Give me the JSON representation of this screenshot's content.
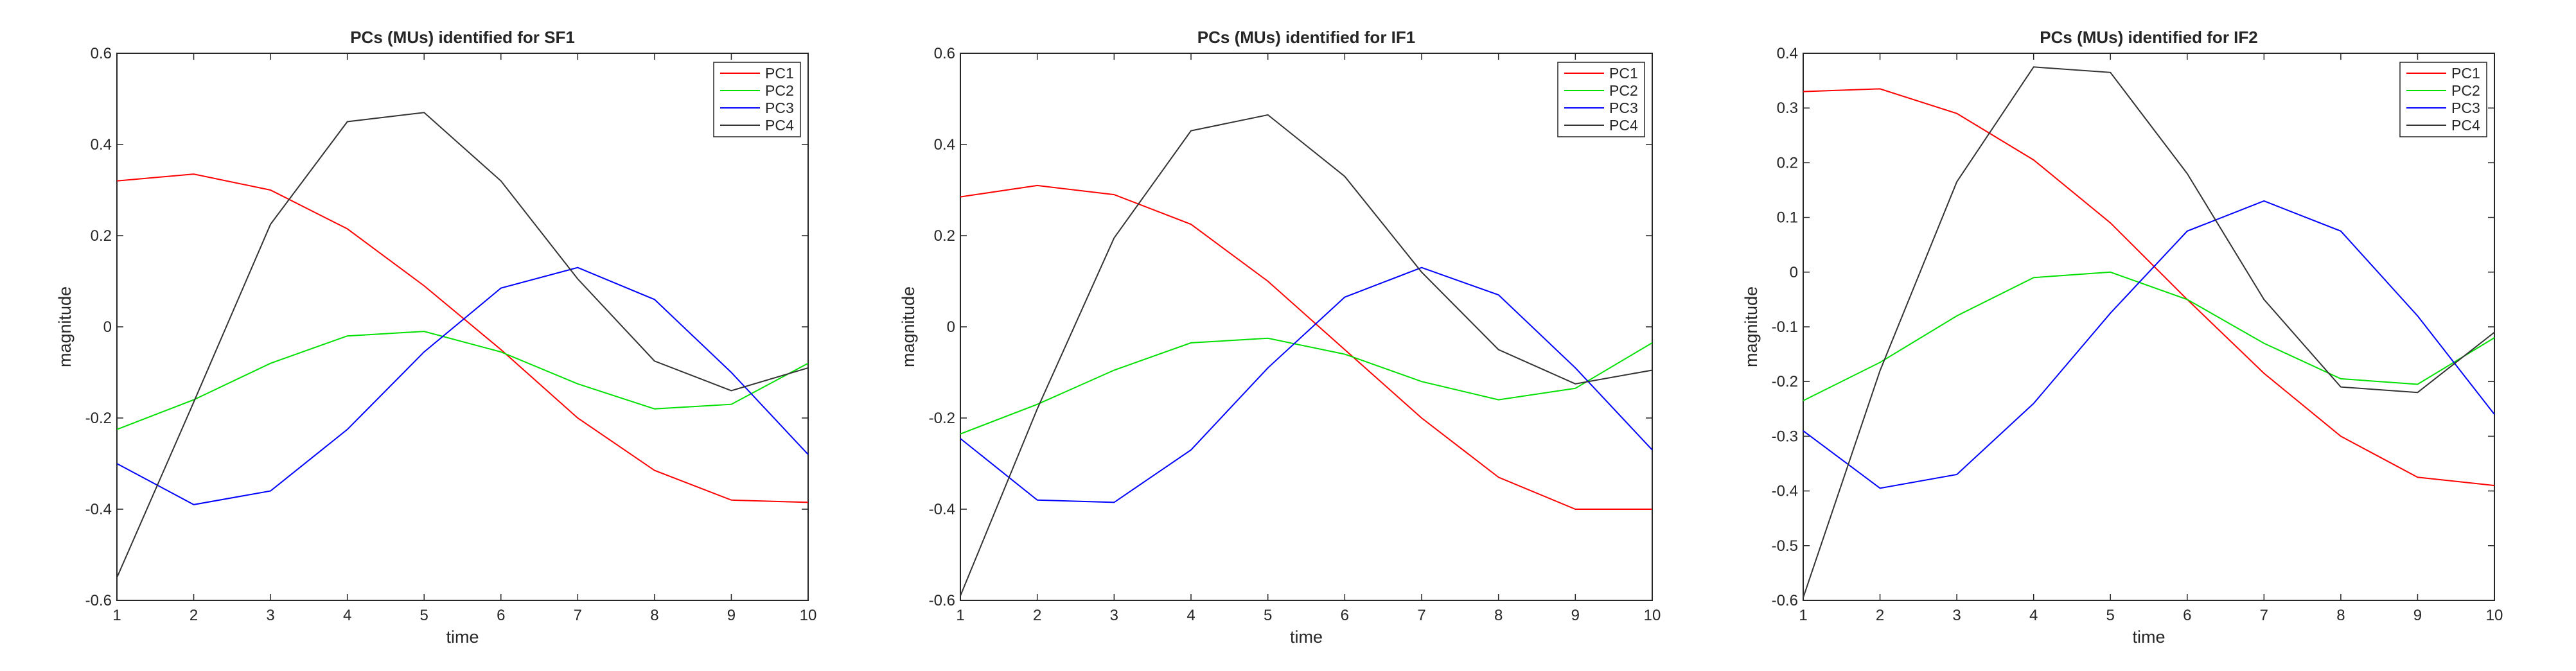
{
  "chart_data": [
    {
      "type": "line",
      "title": "PCs (MUs) identified for SF1",
      "xlabel": "time",
      "ylabel": "magnitude",
      "xlim": [
        1,
        10
      ],
      "ylim": [
        -0.6,
        0.6
      ],
      "xticks": [
        "1",
        "2",
        "3",
        "4",
        "5",
        "6",
        "7",
        "8",
        "9",
        "10"
      ],
      "yticks": [
        "-0.6",
        "-0.4",
        "-0.2",
        "0",
        "0.2",
        "0.4",
        "0.6"
      ],
      "grid": false,
      "legend_position": "top-right",
      "x": [
        1,
        2,
        3,
        4,
        5,
        6,
        7,
        8,
        9,
        10
      ],
      "series": [
        {
          "name": "PC1",
          "color": "#ff0000",
          "values": [
            0.32,
            0.335,
            0.3,
            0.215,
            0.09,
            -0.05,
            -0.2,
            -0.315,
            -0.38,
            -0.385
          ]
        },
        {
          "name": "PC2",
          "color": "#00e000",
          "values": [
            -0.225,
            -0.16,
            -0.08,
            -0.02,
            -0.01,
            -0.055,
            -0.125,
            -0.18,
            -0.17,
            -0.08
          ]
        },
        {
          "name": "PC3",
          "color": "#0000ff",
          "values": [
            -0.3,
            -0.39,
            -0.36,
            -0.225,
            -0.055,
            0.085,
            0.13,
            0.06,
            -0.1,
            -0.28
          ]
        },
        {
          "name": "PC4",
          "color": "#333333",
          "values": [
            -0.55,
            -0.165,
            0.225,
            0.45,
            0.47,
            0.32,
            0.105,
            -0.075,
            -0.14,
            -0.09
          ]
        }
      ]
    },
    {
      "type": "line",
      "title": "PCs (MUs) identified for IF1",
      "xlabel": "time",
      "ylabel": "magnitude",
      "xlim": [
        1,
        10
      ],
      "ylim": [
        -0.6,
        0.6
      ],
      "xticks": [
        "1",
        "2",
        "3",
        "4",
        "5",
        "6",
        "7",
        "8",
        "9",
        "10"
      ],
      "yticks": [
        "-0.6",
        "-0.4",
        "-0.2",
        "0",
        "0.2",
        "0.4",
        "0.6"
      ],
      "grid": false,
      "legend_position": "top-right",
      "x": [
        1,
        2,
        3,
        4,
        5,
        6,
        7,
        8,
        9,
        10
      ],
      "series": [
        {
          "name": "PC1",
          "color": "#ff0000",
          "values": [
            0.285,
            0.31,
            0.29,
            0.225,
            0.1,
            -0.05,
            -0.2,
            -0.33,
            -0.4,
            -0.4
          ]
        },
        {
          "name": "PC2",
          "color": "#00e000",
          "values": [
            -0.235,
            -0.17,
            -0.095,
            -0.035,
            -0.025,
            -0.06,
            -0.12,
            -0.16,
            -0.135,
            -0.035
          ]
        },
        {
          "name": "PC3",
          "color": "#0000ff",
          "values": [
            -0.245,
            -0.38,
            -0.385,
            -0.27,
            -0.09,
            0.065,
            0.13,
            0.07,
            -0.09,
            -0.27
          ]
        },
        {
          "name": "PC4",
          "color": "#333333",
          "values": [
            -0.59,
            -0.18,
            0.195,
            0.43,
            0.465,
            0.33,
            0.12,
            -0.05,
            -0.125,
            -0.095
          ]
        }
      ]
    },
    {
      "type": "line",
      "title": "PCs (MUs) identified for IF2",
      "xlabel": "time",
      "ylabel": "magnitude",
      "xlim": [
        1,
        10
      ],
      "ylim": [
        -0.6,
        0.4
      ],
      "xticks": [
        "1",
        "2",
        "3",
        "4",
        "5",
        "6",
        "7",
        "8",
        "9",
        "10"
      ],
      "yticks": [
        "-0.6",
        "-0.5",
        "-0.4",
        "-0.3",
        "-0.2",
        "-0.1",
        "0",
        "0.1",
        "0.2",
        "0.3",
        "0.4"
      ],
      "grid": false,
      "legend_position": "top-right",
      "x": [
        1,
        2,
        3,
        4,
        5,
        6,
        7,
        8,
        9,
        10
      ],
      "series": [
        {
          "name": "PC1",
          "color": "#ff0000",
          "values": [
            0.33,
            0.335,
            0.29,
            0.205,
            0.09,
            -0.05,
            -0.185,
            -0.3,
            -0.375,
            -0.39
          ]
        },
        {
          "name": "PC2",
          "color": "#00e000",
          "values": [
            -0.235,
            -0.165,
            -0.08,
            -0.01,
            0.0,
            -0.05,
            -0.13,
            -0.195,
            -0.205,
            -0.12
          ]
        },
        {
          "name": "PC3",
          "color": "#0000ff",
          "values": [
            -0.29,
            -0.395,
            -0.37,
            -0.24,
            -0.075,
            0.075,
            0.13,
            0.075,
            -0.08,
            -0.26
          ]
        },
        {
          "name": "PC4",
          "color": "#333333",
          "values": [
            -0.595,
            -0.18,
            0.165,
            0.375,
            0.365,
            0.18,
            -0.05,
            -0.21,
            -0.22,
            -0.11
          ]
        }
      ]
    }
  ]
}
